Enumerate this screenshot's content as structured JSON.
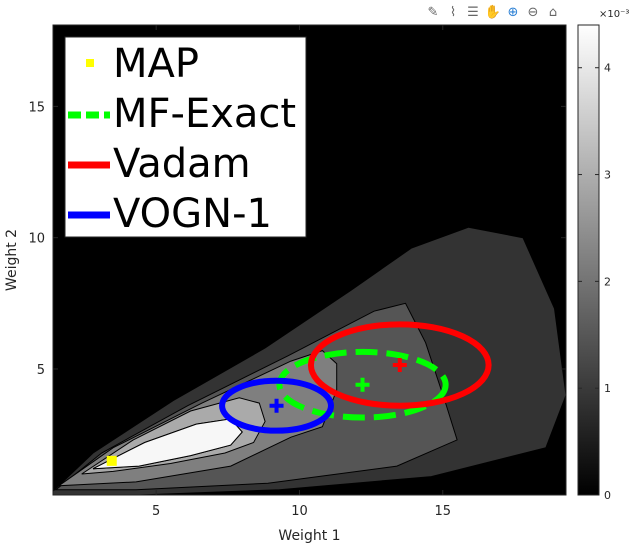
{
  "toolbar": {
    "icons": [
      "annotate-icon",
      "brush-icon",
      "legend-icon",
      "pan-icon",
      "zoom-in-icon",
      "zoom-out-icon",
      "home-icon"
    ]
  },
  "chart_data": {
    "type": "contour",
    "xlabel": "Weight 1",
    "ylabel": "Weight 2",
    "xlim": [
      1.4,
      19.3
    ],
    "ylim": [
      0.2,
      18.1
    ],
    "xticks": [
      5,
      10,
      15
    ],
    "yticks": [
      5,
      10,
      15
    ],
    "background": "#000000",
    "contour_levels": [
      {
        "level": 0.0003,
        "color": "#333333"
      },
      {
        "level": 0.0012,
        "color": "#555555"
      },
      {
        "level": 0.0021,
        "color": "#7f7f7f"
      },
      {
        "level": 0.003,
        "color": "#aaaaaa"
      },
      {
        "level": 0.0038,
        "color": "#d4d4d4"
      },
      {
        "level": 0.0043,
        "color": "#f7f7f7"
      }
    ],
    "colorbar": {
      "min": 0,
      "max": 0.0044,
      "ticks": [
        "0",
        "1",
        "2",
        "3",
        "4"
      ],
      "tick_values": [
        0,
        0.001,
        0.002,
        0.003,
        0.004
      ],
      "exponent": "×10⁻³"
    },
    "map_point": {
      "x": 3.45,
      "y": 1.5,
      "color": "#ffff00"
    },
    "ellipses": [
      {
        "name": "MF-Exact",
        "cx": 12.2,
        "cy": 4.4,
        "rx": 2.9,
        "ry": 1.25,
        "color": "#00ff00",
        "dashed": true
      },
      {
        "name": "Vadam",
        "cx": 13.5,
        "cy": 5.15,
        "rx": 3.1,
        "ry": 1.55,
        "color": "#ff0000",
        "dashed": false
      },
      {
        "name": "VOGN-1",
        "cx": 9.2,
        "cy": 3.6,
        "rx": 1.9,
        "ry": 0.95,
        "color": "#0000ff",
        "dashed": false
      }
    ],
    "legend": {
      "position": "top-left",
      "entries": [
        {
          "label": "MAP",
          "color": "#ffff00",
          "marker": "square"
        },
        {
          "label": "MF-Exact",
          "color": "#00ff00",
          "marker": "dashed-line"
        },
        {
          "label": "Vadam",
          "color": "#ff0000",
          "marker": "line"
        },
        {
          "label": "VOGN-1",
          "color": "#0000ff",
          "marker": "line"
        }
      ]
    }
  }
}
